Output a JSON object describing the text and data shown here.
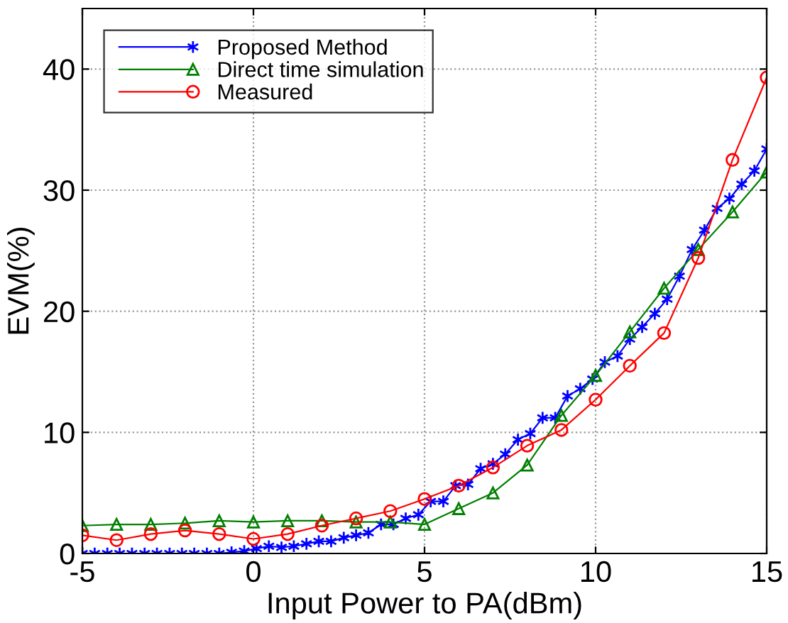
{
  "chart_data": {
    "type": "line",
    "xlabel": "Input Power to PA(dBm)",
    "ylabel": "EVM(%)",
    "xlim": [
      -5,
      15
    ],
    "xticks": [
      -5,
      0,
      5,
      10,
      15
    ],
    "ylim": [
      0,
      45
    ],
    "yticks": [
      0,
      10,
      20,
      30,
      40
    ],
    "grid": true,
    "legend": "top left",
    "series": [
      {
        "name": "Proposed Method",
        "color": "#0000ff",
        "marker": "cross",
        "x": [
          -5,
          -4.64,
          -4.27,
          -3.91,
          -3.55,
          -3.18,
          -2.82,
          -2.45,
          -2.09,
          -1.73,
          -1.36,
          -1,
          -0.64,
          -0.27,
          0.09,
          0.45,
          0.82,
          1.18,
          1.55,
          1.91,
          2.27,
          2.64,
          3,
          3.36,
          3.73,
          4.09,
          4.45,
          4.82,
          5.18,
          5.55,
          5.91,
          6.27,
          6.64,
          7,
          7.36,
          7.73,
          8.09,
          8.45,
          8.82,
          9.18,
          9.55,
          9.91,
          10.27,
          10.64,
          11,
          11.36,
          11.73,
          12.09,
          12.45,
          12.82,
          13.18,
          13.55,
          13.91,
          14.27,
          14.64,
          15
        ],
        "values": [
          0,
          0,
          0,
          0,
          0,
          0,
          0,
          0,
          0,
          0,
          0,
          0,
          0.1,
          0.2,
          0.4,
          0.6,
          0.5,
          0.6,
          0.8,
          1.0,
          1.0,
          1.3,
          1.5,
          1.7,
          2.4,
          2.4,
          2.9,
          3.2,
          4.3,
          4.3,
          5.6,
          5.7,
          7.0,
          7.4,
          8.2,
          9.4,
          9.9,
          11.2,
          11.2,
          13.0,
          13.6,
          14.4,
          15.8,
          16.3,
          17.7,
          18.7,
          19.8,
          21.0,
          22.9,
          25.1,
          26.7,
          28.5,
          29.3,
          30.5,
          31.6,
          33.4
        ]
      },
      {
        "name": "Direct time simulation",
        "color": "#008000",
        "marker": "triangle",
        "x": [
          -5,
          -4,
          -3,
          -2,
          -1,
          0,
          1,
          2,
          3,
          4,
          5,
          6,
          7,
          8,
          9,
          10,
          11,
          12,
          13,
          14,
          15
        ],
        "values": [
          2.3,
          2.4,
          2.4,
          2.5,
          2.7,
          2.6,
          2.7,
          2.7,
          2.6,
          2.6,
          2.4,
          3.7,
          5.0,
          7.3,
          11.4,
          14.7,
          18.3,
          21.9,
          25.1,
          28.2,
          31.5
        ]
      },
      {
        "name": "Measured",
        "color": "#ff0000",
        "marker": "circle",
        "x": [
          -5,
          -4,
          -3,
          -2,
          -1,
          0,
          1,
          2,
          3,
          4,
          5,
          6,
          7,
          8,
          9,
          10,
          11,
          12,
          13,
          14,
          15
        ],
        "values": [
          1.5,
          1.1,
          1.6,
          1.9,
          1.6,
          1.2,
          1.6,
          2.3,
          2.9,
          3.5,
          4.5,
          5.6,
          7.1,
          8.9,
          10.2,
          12.7,
          15.5,
          18.2,
          24.4,
          32.5,
          39.3
        ]
      }
    ]
  }
}
